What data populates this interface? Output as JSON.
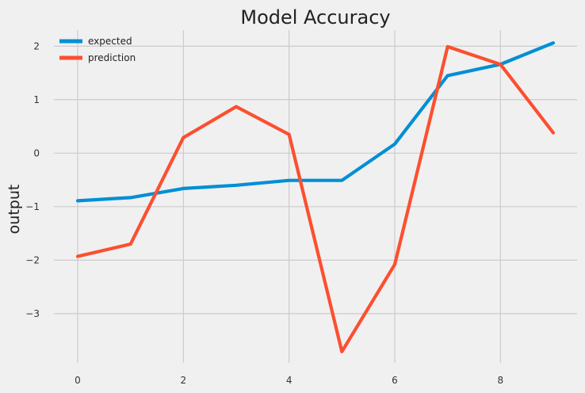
{
  "chart_data": {
    "type": "line",
    "title": "Model Accuracy",
    "xlabel": "",
    "ylabel": "output",
    "x": [
      0,
      1,
      2,
      3,
      4,
      5,
      6,
      7,
      8,
      9
    ],
    "series": [
      {
        "name": "expected",
        "color": "#008fd5",
        "values": [
          -0.89,
          -0.83,
          -0.66,
          -0.6,
          -0.51,
          -0.51,
          0.17,
          1.45,
          1.66,
          2.06
        ]
      },
      {
        "name": "prediction",
        "color": "#fc4f30",
        "values": [
          -1.93,
          -1.7,
          0.29,
          0.87,
          0.35,
          -3.71,
          -2.08,
          1.99,
          1.66,
          0.38
        ]
      }
    ],
    "xlim": [
      -0.45,
      9.45
    ],
    "ylim": [
      -3.92,
      2.3
    ],
    "xticks": [
      0,
      2,
      4,
      6,
      8
    ],
    "yticks": [
      -3,
      -2,
      -1,
      0,
      1,
      2
    ],
    "xtick_labels": [
      "0",
      "2",
      "4",
      "6",
      "8"
    ],
    "ytick_labels": [
      "−3",
      "−2",
      "−1",
      "0",
      "1",
      "2"
    ],
    "grid": true,
    "legend_position": "top-left"
  }
}
